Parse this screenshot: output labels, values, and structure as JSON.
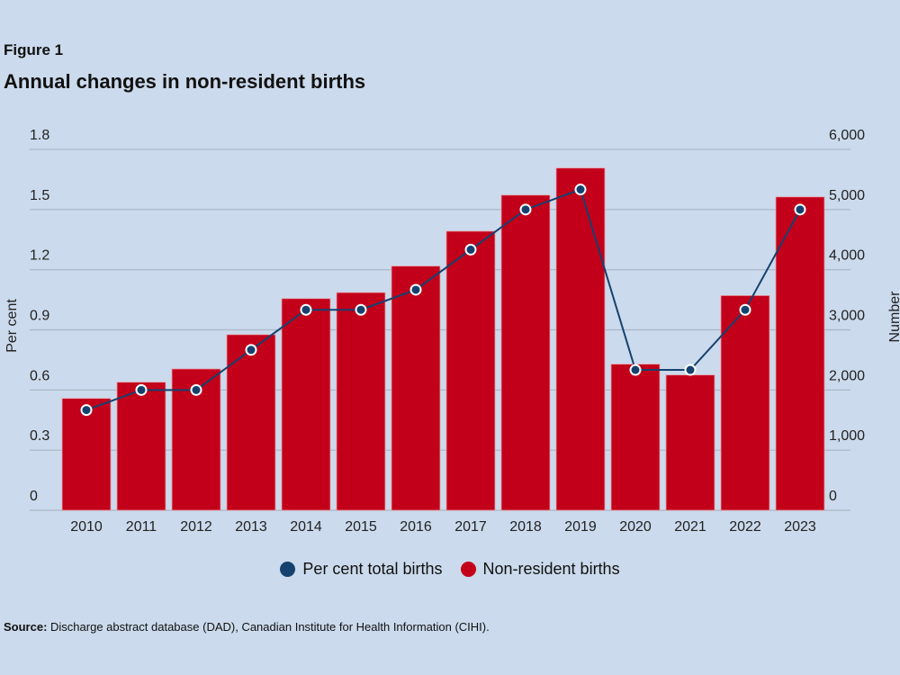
{
  "header": {
    "figure_label": "Figure 1",
    "title": "Annual changes in non-resident births"
  },
  "source": {
    "label": "Source:",
    "text": " Discharge abstract database (DAD), Canadian Institute for Health Information (CIHI)."
  },
  "colors": {
    "background": "#cbdaec",
    "bars": "#c3001a",
    "line": "#15416e",
    "grid": "#a9b6c6"
  },
  "chart_data": {
    "type": "bar+line",
    "title": "Annual changes in non-resident births",
    "categories": [
      "2010",
      "2011",
      "2012",
      "2013",
      "2014",
      "2015",
      "2016",
      "2017",
      "2018",
      "2019",
      "2020",
      "2021",
      "2022",
      "2023"
    ],
    "series": [
      {
        "name": "Per cent total births",
        "type": "line",
        "axis": "left",
        "values": [
          0.5,
          0.6,
          0.6,
          0.8,
          1.0,
          1.0,
          1.1,
          1.3,
          1.5,
          1.6,
          0.7,
          0.7,
          1.0,
          1.5
        ]
      },
      {
        "name": "Non-resident births",
        "type": "bar",
        "axis": "right",
        "values": [
          1860,
          2130,
          2350,
          2920,
          3520,
          3620,
          4060,
          4640,
          5240,
          5690,
          2430,
          2250,
          3570,
          5210
        ]
      }
    ],
    "ylabel": "Per cent",
    "ylabel_right": "Number",
    "ylim": [
      0,
      1.8
    ],
    "ylim_right": [
      0,
      6000
    ],
    "yticks": [
      "0",
      "0.3",
      "0.6",
      "0.9",
      "1.2",
      "1.5",
      "1.8"
    ],
    "yticks_right": [
      "0",
      "1,000",
      "2,000",
      "3,000",
      "4,000",
      "5,000",
      "6,000"
    ],
    "grid": true,
    "legend_position": "bottom"
  }
}
